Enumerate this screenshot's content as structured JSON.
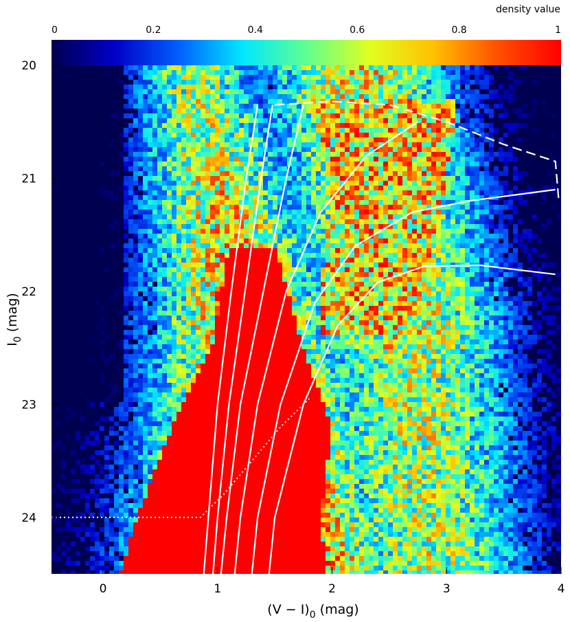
{
  "chart_data": {
    "type": "heatmap",
    "description_of_axes": "color-magnitude diagram",
    "x": {
      "label": "(V − I)",
      "label_sub": "0",
      "label_unit": " (mag)",
      "range": [
        -0.45,
        4.0
      ],
      "ticks": [
        0,
        1,
        2,
        3,
        4
      ]
    },
    "y": {
      "label": "I",
      "label_sub": "0",
      "label_unit": " (mag)",
      "range": [
        20.0,
        24.5
      ],
      "inverted": true,
      "ticks": [
        20,
        21,
        22,
        23,
        24
      ]
    },
    "colorbar": {
      "title": "density value",
      "range": [
        0,
        1
      ],
      "ticks": [
        0,
        0.2,
        0.4,
        0.6,
        0.8,
        1
      ],
      "tick_labels": [
        "0",
        "0.2",
        "0.4",
        "0.6",
        "0.8",
        "1"
      ],
      "colors": [
        "#000050",
        "#0000c8",
        "#0060ff",
        "#00e8ff",
        "#60ff90",
        "#e0ff20",
        "#ffc000",
        "#ff5000",
        "#ff0000"
      ]
    },
    "background_color": "#000050",
    "density_model": {
      "ridge": [
        [
          20.0,
          0.8
        ],
        [
          22.0,
          1.2
        ],
        [
          23.0,
          1.35
        ],
        [
          24.0,
          1.4
        ],
        [
          24.5,
          1.45
        ]
      ],
      "saturated_core": [
        [
          21.6,
          1.1,
          1.5
        ],
        [
          22.5,
          0.95,
          1.75
        ],
        [
          23.2,
          0.6,
          2.0
        ],
        [
          24.0,
          0.3,
          1.9
        ],
        [
          24.5,
          0.15,
          1.95
        ]
      ],
      "red_giant_branch_region": [
        [
          20.3,
          1.8,
          3.1
        ],
        [
          21.0,
          2.0,
          3.0
        ],
        [
          22.0,
          1.9,
          2.8
        ]
      ]
    },
    "isochrones": [
      {
        "name": "",
        "points": [
          [
            1.35,
            20.35
          ],
          [
            1.25,
            21.0
          ],
          [
            1.12,
            22.0
          ],
          [
            1.0,
            23.0
          ],
          [
            0.92,
            24.0
          ],
          [
            0.88,
            24.5
          ]
        ]
      },
      {
        "name": "",
        "points": [
          [
            1.48,
            20.35
          ],
          [
            1.38,
            21.0
          ],
          [
            1.24,
            22.0
          ],
          [
            1.1,
            23.0
          ],
          [
            1.0,
            24.0
          ],
          [
            0.96,
            24.5
          ]
        ]
      },
      {
        "name": "",
        "points": [
          [
            1.75,
            20.35
          ],
          [
            1.6,
            21.0
          ],
          [
            1.4,
            22.0
          ],
          [
            1.2,
            23.0
          ],
          [
            1.08,
            24.0
          ],
          [
            1.03,
            24.5
          ]
        ]
      },
      {
        "name": "",
        "points": [
          [
            2.75,
            20.5
          ],
          [
            2.3,
            20.8
          ],
          [
            1.9,
            21.3
          ],
          [
            1.6,
            22.0
          ],
          [
            1.35,
            23.0
          ],
          [
            1.2,
            24.0
          ],
          [
            1.15,
            24.5
          ]
        ]
      },
      {
        "name": "",
        "points": [
          [
            3.95,
            21.1
          ],
          [
            3.2,
            21.2
          ],
          [
            2.7,
            21.3
          ],
          [
            2.2,
            21.6
          ],
          [
            1.85,
            22.1
          ],
          [
            1.55,
            23.0
          ],
          [
            1.35,
            24.0
          ],
          [
            1.3,
            24.5
          ]
        ]
      },
      {
        "name": "",
        "points": [
          [
            3.95,
            21.85
          ],
          [
            3.3,
            21.77
          ],
          [
            2.8,
            21.78
          ],
          [
            2.4,
            21.92
          ],
          [
            2.05,
            22.3
          ],
          [
            1.75,
            23.0
          ],
          [
            1.5,
            24.0
          ],
          [
            1.45,
            24.5
          ]
        ]
      }
    ],
    "tip_line_dashed": {
      "points": [
        [
          1.5,
          20.35
        ],
        [
          2.0,
          20.32
        ],
        [
          2.5,
          20.35
        ],
        [
          3.0,
          20.5
        ],
        [
          3.5,
          20.7
        ],
        [
          3.95,
          20.85
        ],
        [
          3.98,
          21.2
        ]
      ]
    },
    "completeness_line_dotted": {
      "points": [
        [
          -0.45,
          24.0
        ],
        [
          0.85,
          24.0
        ],
        [
          1.05,
          23.8
        ],
        [
          1.3,
          23.5
        ],
        [
          1.55,
          23.2
        ],
        [
          1.8,
          22.95
        ]
      ]
    }
  }
}
